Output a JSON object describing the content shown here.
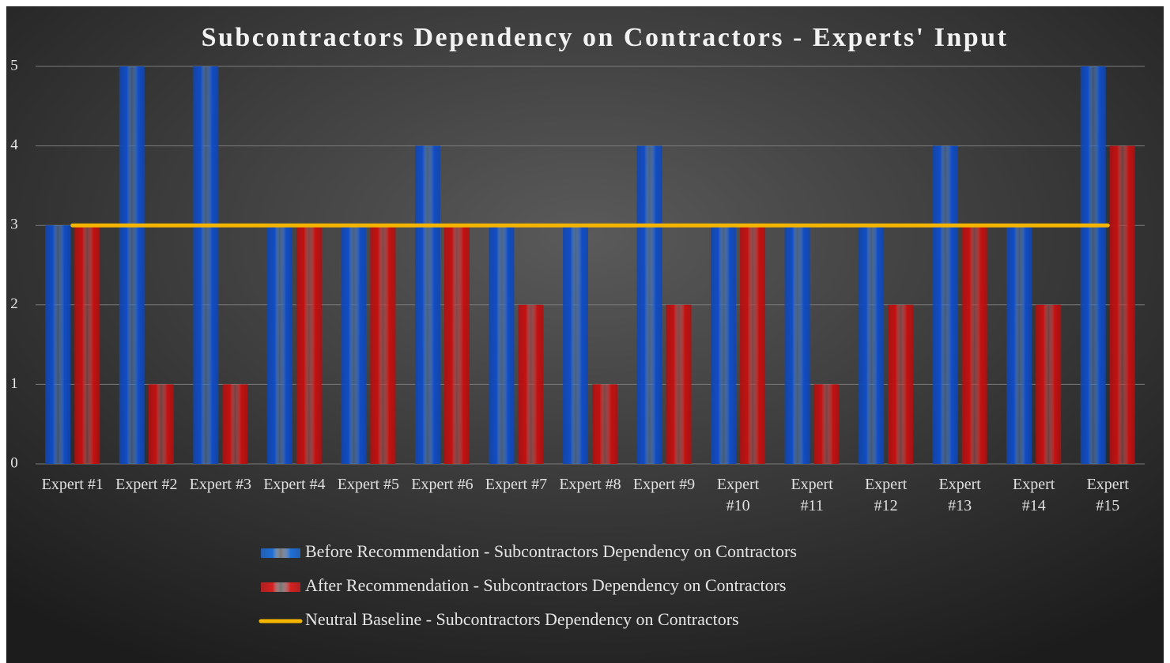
{
  "chart_data": {
    "type": "bar",
    "title": "Subcontractors Dependency on Contractors - Experts' Input",
    "categories": [
      "Expert #1",
      "Expert #2",
      "Expert #3",
      "Expert #4",
      "Expert #5",
      "Expert #6",
      "Expert #7",
      "Expert #8",
      "Expert #9",
      "Expert #10",
      "Expert #11",
      "Expert #12",
      "Expert #13",
      "Expert #14",
      "Expert #15"
    ],
    "series": [
      {
        "name": "Before Recommendation - Subcontractors Dependency on Contractors",
        "color": "#1f6fd8",
        "values": [
          3,
          5,
          5,
          3,
          3,
          4,
          3,
          3,
          4,
          3,
          3,
          3,
          4,
          3,
          5
        ]
      },
      {
        "name": "After Recommendation - Subcontractors Dependency on Contractors",
        "color": "#d71f1f",
        "values": [
          3,
          1,
          1,
          3,
          3,
          3,
          2,
          1,
          2,
          3,
          1,
          2,
          3,
          2,
          4
        ]
      },
      {
        "name": "Neutral Baseline - Subcontractors Dependency on Contractors",
        "color": "#f5b400",
        "type": "line",
        "values": [
          3,
          3,
          3,
          3,
          3,
          3,
          3,
          3,
          3,
          3,
          3,
          3,
          3,
          3,
          3
        ]
      }
    ],
    "ylim": [
      0,
      5
    ],
    "yticks": [
      0,
      1,
      2,
      3,
      4,
      5
    ],
    "grid": true
  }
}
